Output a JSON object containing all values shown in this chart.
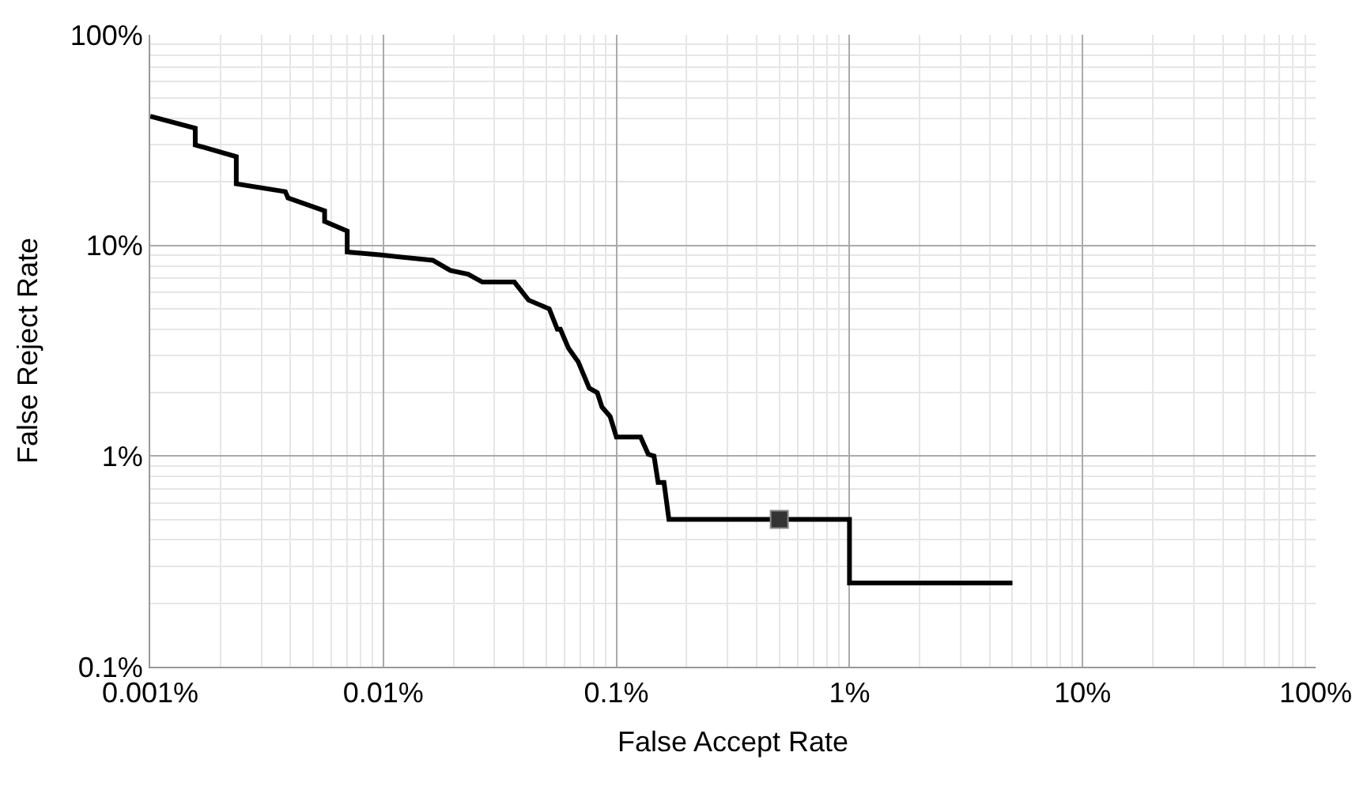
{
  "chart_data": {
    "type": "line",
    "xlabel": "False Accept Rate",
    "ylabel": "False Reject Rate",
    "log": "xy",
    "grid": true,
    "xlim": [
      0.001,
      100
    ],
    "ylim": [
      0.1,
      100
    ],
    "xticks": [
      {
        "value": 0.001,
        "label": "0.001%"
      },
      {
        "value": 0.01,
        "label": "0.01%"
      },
      {
        "value": 0.1,
        "label": "0.1%"
      },
      {
        "value": 1,
        "label": "1%"
      },
      {
        "value": 10,
        "label": "10%"
      },
      {
        "value": 100,
        "label": "100%"
      }
    ],
    "yticks": [
      {
        "value": 0.1,
        "label": "0.1%"
      },
      {
        "value": 1,
        "label": "1%"
      },
      {
        "value": 10,
        "label": "10%"
      },
      {
        "value": 100,
        "label": "100%"
      }
    ],
    "series": [
      {
        "color": "#000000",
        "marker": "none",
        "line_style": "solid",
        "x": [
          0.001,
          0.00156,
          0.00156,
          0.00234,
          0.00234,
          0.0038,
          0.0039,
          0.0056,
          0.0056,
          0.007,
          0.007,
          0.0098,
          0.0163,
          0.0194,
          0.0231,
          0.0266,
          0.0365,
          0.042,
          0.0515,
          0.0558,
          0.0575,
          0.0623,
          0.0686,
          0.0765,
          0.0828,
          0.0867,
          0.094,
          0.1,
          0.127,
          0.137,
          0.145,
          0.151,
          0.16,
          0.168,
          1,
          1,
          5
        ],
        "values": [
          41,
          36,
          30,
          26.4,
          19.6,
          18,
          16.8,
          14.6,
          13,
          11.7,
          9.3,
          9.0,
          8.5,
          7.6,
          7.3,
          6.7,
          6.7,
          5.5,
          5.0,
          4.0,
          4.0,
          3.25,
          2.8,
          2.1,
          2.0,
          1.71,
          1.54,
          1.23,
          1.23,
          1.02,
          1.0,
          0.75,
          0.75,
          0.5,
          0.5,
          0.25,
          0.25
        ]
      },
      {
        "type": "scatter",
        "color": "#333333",
        "marker": "square",
        "x": [
          0.5
        ],
        "values": [
          0.5
        ]
      }
    ]
  }
}
